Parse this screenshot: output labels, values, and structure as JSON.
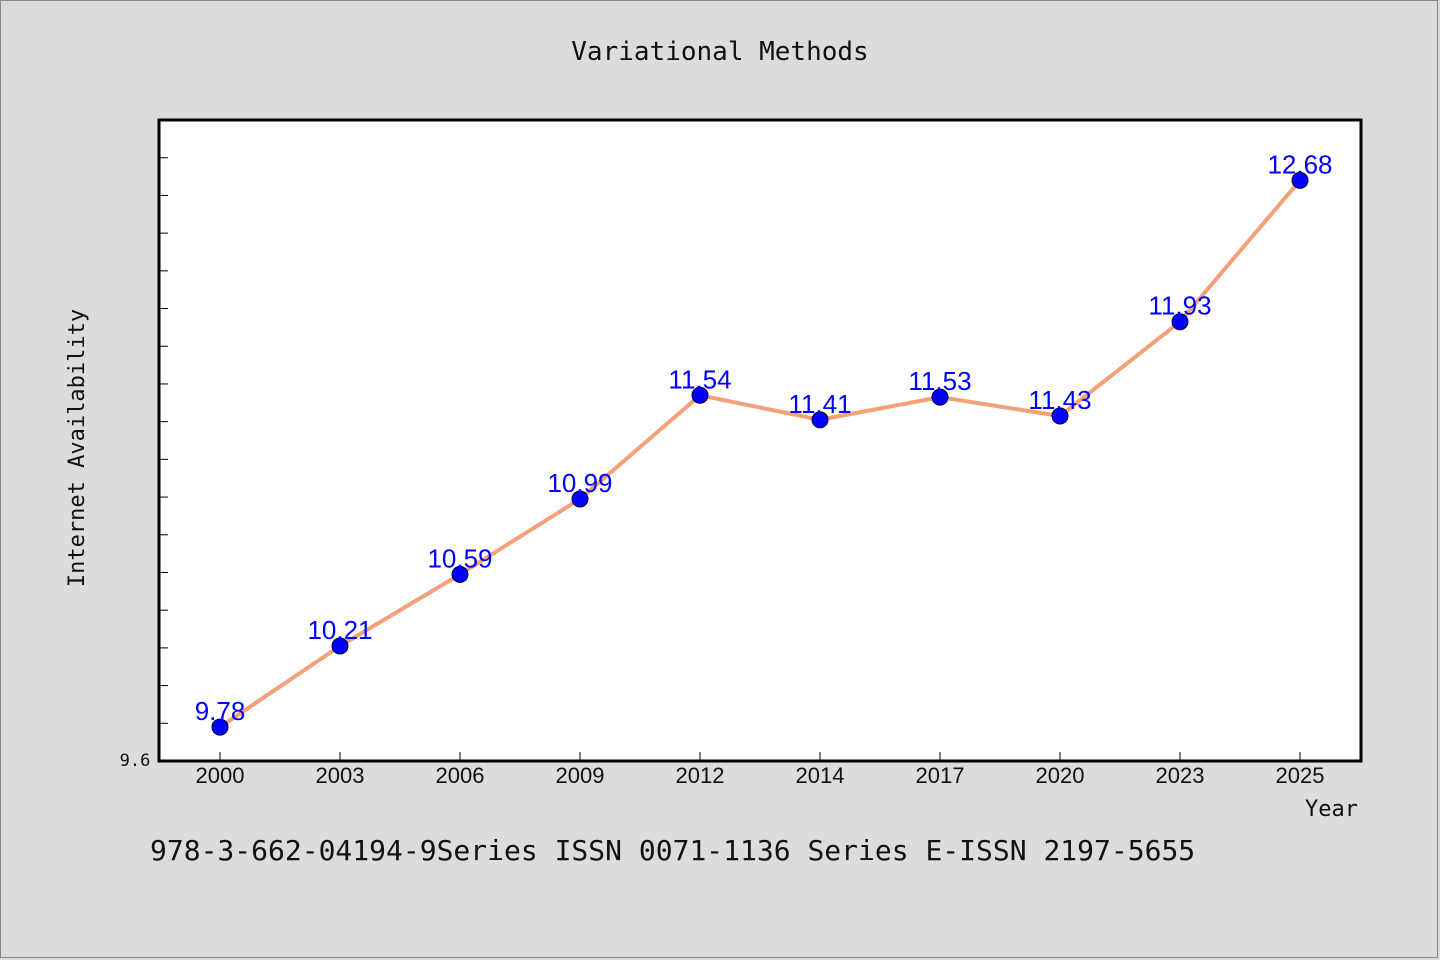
{
  "chart_data": {
    "type": "line",
    "title": "Variational Methods",
    "xlabel": "Year",
    "ylabel": "Internet Availability",
    "categories": [
      "2000",
      "2003",
      "2006",
      "2009",
      "2012",
      "2014",
      "2017",
      "2020",
      "2023",
      "2025"
    ],
    "series": [
      {
        "values": [
          9.78,
          10.21,
          10.59,
          10.99,
          11.54,
          11.41,
          11.53,
          11.43,
          11.93,
          12.68
        ],
        "labels": [
          "9.78",
          "10.21",
          "10.59",
          "10.99",
          "11.54",
          "11.41",
          "11.53",
          "11.43",
          "11.93",
          "12.68"
        ],
        "line_color": "#f4a07a",
        "marker_color": "#0000ff"
      }
    ],
    "ylim": [
      9.6,
      13.0
    ],
    "y_tick_labels": [
      "9.6"
    ],
    "grid": false,
    "legend": "none"
  },
  "footer": {
    "text": "978-3-662-04194-9Series ISSN 0071-1136 Series E-ISSN 2197-5655"
  }
}
